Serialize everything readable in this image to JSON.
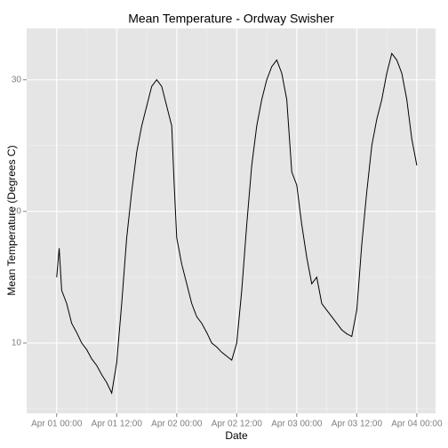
{
  "chart_data": {
    "type": "line",
    "title": "Mean Temperature - Ordway Swisher",
    "xlabel": "Date",
    "ylabel": "Mean Temperature (Degrees C)",
    "x": [
      "Apr 01 00:00",
      "Apr 01 00:30",
      "Apr 01 01:00",
      "Apr 01 02:00",
      "Apr 01 03:00",
      "Apr 01 04:00",
      "Apr 01 05:00",
      "Apr 01 06:00",
      "Apr 01 07:00",
      "Apr 01 08:00",
      "Apr 01 09:00",
      "Apr 01 10:00",
      "Apr 01 11:00",
      "Apr 01 12:00",
      "Apr 01 13:00",
      "Apr 01 14:00",
      "Apr 01 15:00",
      "Apr 01 16:00",
      "Apr 01 17:00",
      "Apr 01 18:00",
      "Apr 01 19:00",
      "Apr 01 20:00",
      "Apr 01 21:00",
      "Apr 01 22:00",
      "Apr 01 23:00",
      "Apr 01 23:30",
      "Apr 02 00:00",
      "Apr 02 01:00",
      "Apr 02 02:00",
      "Apr 02 03:00",
      "Apr 02 04:00",
      "Apr 02 05:00",
      "Apr 02 06:00",
      "Apr 02 07:00",
      "Apr 02 08:00",
      "Apr 02 09:00",
      "Apr 02 10:00",
      "Apr 02 11:00",
      "Apr 02 12:00",
      "Apr 02 13:00",
      "Apr 02 14:00",
      "Apr 02 15:00",
      "Apr 02 16:00",
      "Apr 02 17:00",
      "Apr 02 18:00",
      "Apr 02 19:00",
      "Apr 02 20:00",
      "Apr 02 21:00",
      "Apr 02 22:00",
      "Apr 02 23:00",
      "Apr 03 00:00",
      "Apr 03 01:00",
      "Apr 03 02:00",
      "Apr 03 03:00",
      "Apr 03 04:00",
      "Apr 03 05:00",
      "Apr 03 06:00",
      "Apr 03 07:00",
      "Apr 03 08:00",
      "Apr 03 09:00",
      "Apr 03 10:00",
      "Apr 03 11:00",
      "Apr 03 12:00",
      "Apr 03 13:00",
      "Apr 03 14:00",
      "Apr 03 15:00",
      "Apr 03 16:00",
      "Apr 03 17:00",
      "Apr 03 18:00",
      "Apr 03 19:00",
      "Apr 03 20:00",
      "Apr 03 21:00",
      "Apr 03 22:00",
      "Apr 03 23:00",
      "Apr 04 00:00"
    ],
    "series": [
      {
        "color": "#000000",
        "values": [
          15,
          17.2,
          14,
          13,
          11.5,
          10.8,
          10,
          9.5,
          8.8,
          8.3,
          7.6,
          7,
          6.2,
          8.5,
          13,
          18,
          21.5,
          24.5,
          26.5,
          28,
          29.5,
          30,
          29.5,
          28,
          26.5,
          22,
          18,
          16,
          14.5,
          13,
          12,
          11.5,
          10.8,
          10,
          9.7,
          9.3,
          9,
          8.7,
          10,
          14,
          19,
          23.5,
          26.5,
          28.5,
          30,
          31,
          31.5,
          30.5,
          28.5,
          23,
          22,
          19,
          16.5,
          14.5,
          15,
          13,
          12.5,
          12,
          11.5,
          11,
          10.7,
          10.5,
          12.5,
          17.5,
          21.5,
          25,
          27,
          28.5,
          30.5,
          32,
          31.5,
          30.5,
          28.5,
          25.5,
          23.5
        ]
      }
    ],
    "xlim": [
      "Mar 31 18:00",
      "Apr 04 03:45"
    ],
    "xticks": [
      "Apr 01 00:00",
      "Apr 01 12:00",
      "Apr 02 00:00",
      "Apr 02 12:00",
      "Apr 03 00:00",
      "Apr 03 12:00",
      "Apr 04 00:00"
    ],
    "ylim": [
      4.66,
      33.9
    ],
    "yticks": [
      10,
      20,
      30
    ],
    "grid": true
  }
}
